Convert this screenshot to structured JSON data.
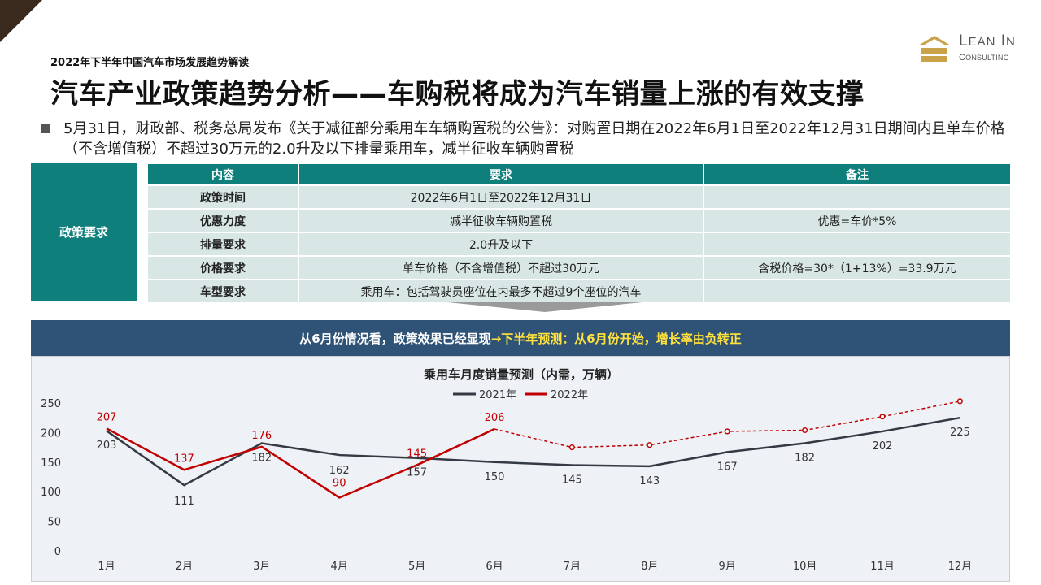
{
  "header": {
    "subtitle": "2022年下半年中国汽车市场发展趋势解读",
    "title": "汽车产业政策趋势分析——车购税将成为汽车销量上涨的有效支撑"
  },
  "logo": {
    "line1": "Lean In",
    "line2": "Consulting",
    "color": "#c9a24a"
  },
  "bullet": {
    "text": "5月31日，财政部、税务总局发布《关于减征部分乘用车车辆购置税的公告》：对购置日期在2022年6月1日至2022年12月31日期间内且单车价格（不含增值税）不超过30万元的2.0升及以下排量乘用车，减半征收车辆购置税"
  },
  "policy": {
    "side_label": "政策要求",
    "headers": [
      "内容",
      "要求",
      "备注"
    ],
    "rows": [
      [
        "政策时间",
        "2022年6月1日至2022年12月31日",
        ""
      ],
      [
        "优惠力度",
        "减半征收车辆购置税",
        "优惠=车价*5%"
      ],
      [
        "排量要求",
        "2.0升及以下",
        ""
      ],
      [
        "价格要求",
        "单车价格（不含增值税）不超过30万元",
        "含税价格=30*（1+13%）=33.9万元"
      ],
      [
        "车型要求",
        "乘用车：包括驾驶员座位在内最多不超过9个座位的汽车",
        ""
      ]
    ],
    "accent_color": "#0f7f7c",
    "row_color": "#d8e7e6"
  },
  "banner": {
    "text_white": "从6月份情况看，政策效果已经显现",
    "text_yellow": "→下半年预测：从6月份开始，增长率由负转正"
  },
  "chart_data": {
    "type": "line",
    "title": "乘用车月度销量预测（内需，万辆）",
    "categories": [
      "1月",
      "2月",
      "3月",
      "4月",
      "5月",
      "6月",
      "7月",
      "8月",
      "9月",
      "10月",
      "11月",
      "12月"
    ],
    "ylim": [
      0,
      250
    ],
    "yticks": [
      0,
      50,
      100,
      150,
      200,
      250
    ],
    "legend_position": "top-center",
    "series": [
      {
        "name": "2021年",
        "color": "#333a44",
        "values": [
          203,
          111,
          182,
          162,
          157,
          150,
          145,
          143,
          167,
          182,
          202,
          225
        ],
        "labels": [
          "203",
          "111",
          "182",
          "162",
          "157",
          "150",
          "145",
          "143",
          "167",
          "182",
          "202",
          "225"
        ]
      },
      {
        "name": "2022年",
        "color": "#c00000",
        "values": [
          207,
          137,
          176,
          90,
          145,
          206,
          null,
          null,
          null,
          null,
          null,
          null
        ],
        "labels": [
          "207",
          "137",
          "176",
          "90",
          "145",
          "206"
        ],
        "forecast": [
          null,
          null,
          null,
          null,
          null,
          206,
          175,
          179,
          202,
          204,
          227,
          253
        ]
      }
    ]
  }
}
